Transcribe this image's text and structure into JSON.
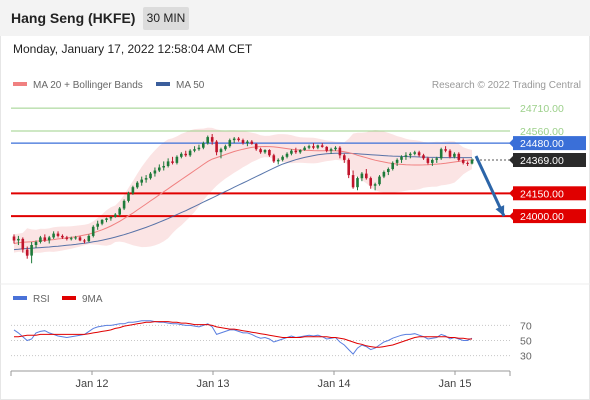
{
  "header": {
    "title": "Hang Seng (HKFE)",
    "interval": "30 MIN"
  },
  "timestamp": "Monday, January 17, 2022 12:58:04 AM CET",
  "legend": {
    "ma20": "MA 20 + Bollinger Bands",
    "ma50": "MA 50",
    "credit": "Research © 2022 Trading Central"
  },
  "rsi_legend": {
    "rsi": "RSI",
    "ma": "9MA"
  },
  "colors": {
    "bull": "#1e7a3a",
    "bear": "#c0142b",
    "ma20": "#f08080",
    "ma50": "#3b5e9c",
    "band": "#fadbdb",
    "support": "#e00000",
    "resistance": "#9cd08a",
    "pivot": "#3a6fd8",
    "last": "#2a2a2a",
    "arrow": "#2c65a8"
  },
  "chart_data": [
    {
      "type": "candlestick",
      "xlabels": [
        "Jan 12",
        "Jan 13",
        "Jan 14",
        "Jan 15"
      ],
      "ylim": [
        23580,
        24790
      ],
      "grid": false,
      "legend_position": "top-left",
      "levels": [
        {
          "value": 24710,
          "label": "24710.00",
          "kind": "resistance"
        },
        {
          "value": 24560,
          "label": "24560.00",
          "kind": "resistance"
        },
        {
          "value": 24480,
          "label": "24480.00",
          "kind": "pivot"
        },
        {
          "value": 24369,
          "label": "24369.00",
          "kind": "last"
        },
        {
          "value": 24150,
          "label": "24150.00",
          "kind": "support"
        },
        {
          "value": 24000,
          "label": "24000.00",
          "kind": "support"
        }
      ],
      "trend_arrow": {
        "from": 24395,
        "to": 24000,
        "direction": "down"
      },
      "ohlc": [
        [
          23866,
          23880,
          23820,
          23840
        ],
        [
          23840,
          23870,
          23810,
          23850
        ],
        [
          23850,
          23860,
          23760,
          23780
        ],
        [
          23780,
          23800,
          23720,
          23740
        ],
        [
          23740,
          23830,
          23690,
          23810
        ],
        [
          23810,
          23840,
          23790,
          23830
        ],
        [
          23830,
          23870,
          23820,
          23860
        ],
        [
          23860,
          23880,
          23830,
          23840
        ],
        [
          23840,
          23870,
          23820,
          23860
        ],
        [
          23860,
          23900,
          23850,
          23885
        ],
        [
          23885,
          23900,
          23860,
          23870
        ],
        [
          23870,
          23880,
          23850,
          23860
        ],
        [
          23860,
          23870,
          23840,
          23850
        ],
        [
          23850,
          23865,
          23840,
          23855
        ],
        [
          23855,
          23870,
          23845,
          23860
        ],
        [
          23860,
          23870,
          23835,
          23840
        ],
        [
          23840,
          23850,
          23820,
          23835
        ],
        [
          23835,
          23880,
          23830,
          23870
        ],
        [
          23870,
          23940,
          23860,
          23930
        ],
        [
          23930,
          23970,
          23910,
          23950
        ],
        [
          23950,
          23980,
          23940,
          23975
        ],
        [
          23975,
          23990,
          23960,
          23985
        ],
        [
          23985,
          24000,
          23970,
          23995
        ],
        [
          23995,
          24020,
          23990,
          24010
        ],
        [
          24010,
          24060,
          24000,
          24050
        ],
        [
          24050,
          24110,
          24040,
          24100
        ],
        [
          24100,
          24160,
          24090,
          24150
        ],
        [
          24150,
          24200,
          24140,
          24190
        ],
        [
          24190,
          24230,
          24180,
          24220
        ],
        [
          24220,
          24260,
          24200,
          24240
        ],
        [
          24240,
          24270,
          24220,
          24250
        ],
        [
          24250,
          24290,
          24240,
          24280
        ],
        [
          24280,
          24320,
          24260,
          24300
        ],
        [
          24300,
          24340,
          24290,
          24320
        ],
        [
          24320,
          24360,
          24300,
          24330
        ],
        [
          24330,
          24380,
          24320,
          24360
        ],
        [
          24360,
          24390,
          24340,
          24350
        ],
        [
          24350,
          24400,
          24340,
          24390
        ],
        [
          24390,
          24420,
          24380,
          24410
        ],
        [
          24410,
          24430,
          24390,
          24400
        ],
        [
          24400,
          24440,
          24390,
          24430
        ],
        [
          24430,
          24460,
          24420,
          24440
        ],
        [
          24440,
          24470,
          24430,
          24450
        ],
        [
          24450,
          24490,
          24440,
          24480
        ],
        [
          24480,
          24530,
          24470,
          24520
        ],
        [
          24520,
          24540,
          24470,
          24490
        ],
        [
          24490,
          24500,
          24400,
          24420
        ],
        [
          24420,
          24450,
          24380,
          24440
        ],
        [
          24440,
          24470,
          24430,
          24460
        ],
        [
          24460,
          24510,
          24450,
          24500
        ],
        [
          24500,
          24520,
          24480,
          24510
        ],
        [
          24510,
          24520,
          24490,
          24500
        ],
        [
          24500,
          24510,
          24470,
          24480
        ],
        [
          24480,
          24500,
          24460,
          24490
        ],
        [
          24490,
          24500,
          24470,
          24475
        ],
        [
          24475,
          24480,
          24430,
          24440
        ],
        [
          24440,
          24450,
          24410,
          24420
        ],
        [
          24420,
          24440,
          24410,
          24435
        ],
        [
          24435,
          24440,
          24390,
          24400
        ],
        [
          24400,
          24410,
          24350,
          24360
        ],
        [
          24360,
          24380,
          24340,
          24370
        ],
        [
          24370,
          24400,
          24360,
          24390
        ],
        [
          24390,
          24420,
          24380,
          24410
        ],
        [
          24410,
          24440,
          24400,
          24430
        ],
        [
          24430,
          24450,
          24410,
          24420
        ],
        [
          24420,
          24440,
          24410,
          24435
        ],
        [
          24435,
          24460,
          24430,
          24450
        ],
        [
          24450,
          24470,
          24440,
          24460
        ],
        [
          24460,
          24480,
          24440,
          24450
        ],
        [
          24450,
          24470,
          24440,
          24465
        ],
        [
          24465,
          24480,
          24450,
          24455
        ],
        [
          24455,
          24460,
          24420,
          24430
        ],
        [
          24430,
          24450,
          24410,
          24440
        ],
        [
          24440,
          24460,
          24430,
          24450
        ],
        [
          24450,
          24460,
          24380,
          24400
        ],
        [
          24400,
          24410,
          24350,
          24370
        ],
        [
          24370,
          24380,
          24250,
          24270
        ],
        [
          24270,
          24300,
          24180,
          24190
        ],
        [
          24190,
          24260,
          24170,
          24250
        ],
        [
          24250,
          24290,
          24230,
          24280
        ],
        [
          24280,
          24310,
          24240,
          24250
        ],
        [
          24250,
          24260,
          24180,
          24200
        ],
        [
          24200,
          24220,
          24170,
          24210
        ],
        [
          24210,
          24270,
          24200,
          24260
        ],
        [
          24260,
          24300,
          24250,
          24290
        ],
        [
          24290,
          24320,
          24270,
          24310
        ],
        [
          24310,
          24360,
          24300,
          24350
        ],
        [
          24350,
          24380,
          24330,
          24370
        ],
        [
          24370,
          24400,
          24350,
          24390
        ],
        [
          24390,
          24420,
          24370,
          24400
        ],
        [
          24400,
          24420,
          24380,
          24410
        ],
        [
          24410,
          24430,
          24400,
          24420
        ],
        [
          24420,
          24430,
          24390,
          24400
        ],
        [
          24400,
          24410,
          24370,
          24380
        ],
        [
          24380,
          24390,
          24340,
          24350
        ],
        [
          24350,
          24380,
          24330,
          24370
        ],
        [
          24370,
          24390,
          24350,
          24380
        ],
        [
          24380,
          24450,
          24370,
          24440
        ],
        [
          24440,
          24460,
          24420,
          24430
        ],
        [
          24430,
          24440,
          24380,
          24390
        ],
        [
          24390,
          24420,
          24380,
          24410
        ],
        [
          24410,
          24420,
          24360,
          24370
        ],
        [
          24370,
          24380,
          24340,
          24350
        ],
        [
          24350,
          24360,
          24330,
          24345
        ],
        [
          24345,
          24380,
          24340,
          24369
        ]
      ],
      "series": [
        {
          "name": "MA 20 + Bollinger Bands",
          "values": [
            23820,
            23825,
            23828,
            23830,
            23832,
            23835,
            23838,
            23840,
            23843,
            23846,
            23850,
            23853,
            23856,
            23860,
            23865,
            23870,
            23876,
            23882,
            23890,
            23900,
            23910,
            23922,
            23935,
            23950,
            23966,
            23984,
            24002,
            24020,
            24040,
            24060,
            24080,
            24100,
            24120,
            24140,
            24160,
            24180,
            24200,
            24220,
            24240,
            24260,
            24280,
            24300,
            24320,
            24340,
            24360,
            24375,
            24385,
            24395,
            24405,
            24415,
            24425,
            24433,
            24440,
            24446,
            24452,
            24455,
            24457,
            24458,
            24457,
            24455,
            24452,
            24448,
            24444,
            24440,
            24437,
            24435,
            24433,
            24432,
            24431,
            24430,
            24430,
            24430,
            24430,
            24430,
            24428,
            24424,
            24418,
            24410,
            24400,
            24392,
            24384,
            24376,
            24368,
            24362,
            24356,
            24350,
            24346,
            24342,
            24340,
            24338,
            24337,
            24336,
            24336,
            24337,
            24338,
            24340,
            24342,
            24345,
            24348,
            24352,
            24356,
            24360,
            24364,
            24368,
            24372
          ]
        },
        {
          "name": "MA 50",
          "values": [
            23780,
            23782,
            23785,
            23787,
            23789,
            23791,
            23793,
            23795,
            23797,
            23800,
            23802,
            23805,
            23808,
            23811,
            23814,
            23818,
            23822,
            23826,
            23831,
            23836,
            23842,
            23848,
            23855,
            23862,
            23870,
            23878,
            23887,
            23896,
            23906,
            23916,
            23926,
            23937,
            23948,
            23960,
            23972,
            23984,
            23997,
            24010,
            24023,
            24036,
            24050,
            24064,
            24078,
            24092,
            24106,
            24120,
            24134,
            24148,
            24162,
            24176,
            24190,
            24204,
            24218,
            24232,
            24246,
            24260,
            24274,
            24288,
            24302,
            24316,
            24330,
            24342,
            24352,
            24362,
            24371,
            24379,
            24386,
            24392,
            24398,
            24403,
            24407,
            24410,
            24412,
            24413,
            24414,
            24414,
            24413,
            24412,
            24410,
            24408,
            24406,
            24404,
            24402,
            24400,
            24398,
            24396,
            24395,
            24394,
            24393,
            24392,
            24391,
            24390,
            24389,
            24388,
            24387,
            24386,
            24386,
            24385,
            24385,
            24385,
            24385,
            24385,
            24385,
            24385,
            24385
          ]
        }
      ]
    },
    {
      "type": "line",
      "xlabels": [
        "Jan 12",
        "Jan 13",
        "Jan 14",
        "Jan 15"
      ],
      "yticks": [
        "70",
        "50",
        "30"
      ],
      "ylim": [
        15,
        85
      ],
      "series": [
        {
          "name": "RSI",
          "values": [
            64,
            60,
            55,
            50,
            52,
            60,
            62,
            63,
            60,
            58,
            56,
            55,
            54,
            55,
            56,
            57,
            58,
            62,
            66,
            68,
            69,
            70,
            70,
            71,
            72,
            72,
            74,
            74,
            75,
            76,
            76,
            76,
            75,
            74,
            74,
            73,
            72,
            72,
            71,
            70,
            70,
            69,
            68,
            70,
            72,
            68,
            58,
            60,
            62,
            64,
            64,
            62,
            60,
            60,
            58,
            55,
            53,
            54,
            52,
            48,
            50,
            52,
            54,
            56,
            54,
            55,
            56,
            57,
            56,
            57,
            55,
            52,
            53,
            54,
            48,
            44,
            38,
            32,
            40,
            44,
            42,
            38,
            40,
            44,
            48,
            50,
            53,
            55,
            57,
            58,
            58,
            59,
            57,
            55,
            52,
            53,
            54,
            58,
            56,
            52,
            54,
            52,
            50,
            50,
            53
          ]
        },
        {
          "name": "9MA",
          "values": [
            55,
            55,
            56,
            57,
            57,
            57,
            58,
            58,
            58,
            58,
            58,
            58,
            58,
            58,
            58,
            58,
            58,
            59,
            60,
            61,
            62,
            63,
            64,
            66,
            67,
            69,
            70,
            71,
            72,
            73,
            74,
            74,
            75,
            75,
            75,
            75,
            74,
            74,
            73,
            73,
            72,
            71,
            71,
            71,
            71,
            70,
            68,
            67,
            66,
            65,
            65,
            64,
            63,
            62,
            61,
            60,
            59,
            58,
            57,
            56,
            55,
            54,
            54,
            54,
            54,
            54,
            55,
            55,
            55,
            55,
            55,
            55,
            54,
            54,
            53,
            52,
            50,
            48,
            46,
            45,
            43,
            42,
            41,
            41,
            42,
            43,
            44,
            46,
            48,
            50,
            52,
            54,
            55,
            55,
            55,
            55,
            55,
            55,
            55,
            54,
            54,
            53,
            53,
            52,
            52
          ]
        }
      ]
    }
  ]
}
